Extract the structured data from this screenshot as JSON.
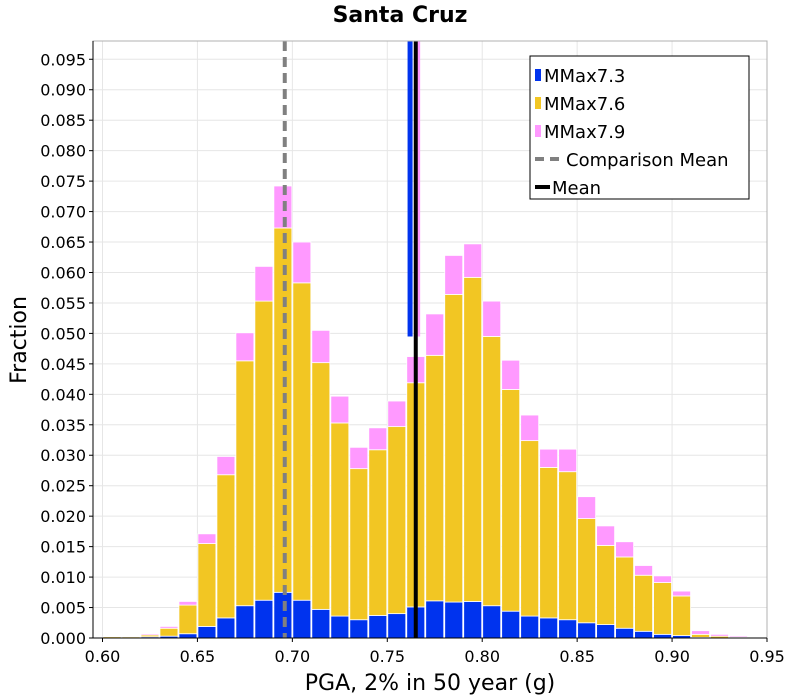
{
  "chart_data": {
    "type": "bar",
    "stacked": true,
    "title": "Santa Cruz",
    "xlabel": "PGA, 2% in 50 year (g)",
    "ylabel": "Fraction",
    "xlim": [
      0.595,
      0.95
    ],
    "ylim": [
      0.0,
      0.098
    ],
    "grid": true,
    "legend_position": "top-right",
    "x_ticks": [
      "0.60",
      "0.65",
      "0.70",
      "0.75",
      "0.80",
      "0.85",
      "0.90",
      "0.95"
    ],
    "y_ticks": [
      "0.000",
      "0.005",
      "0.010",
      "0.015",
      "0.020",
      "0.025",
      "0.030",
      "0.035",
      "0.040",
      "0.045",
      "0.050",
      "0.055",
      "0.060",
      "0.065",
      "0.070",
      "0.075",
      "0.080",
      "0.085",
      "0.090",
      "0.095"
    ],
    "bin_width": 0.01,
    "x": [
      0.605,
      0.615,
      0.625,
      0.635,
      0.645,
      0.655,
      0.665,
      0.675,
      0.685,
      0.695,
      0.705,
      0.715,
      0.725,
      0.735,
      0.745,
      0.755,
      0.765,
      0.775,
      0.785,
      0.795,
      0.805,
      0.815,
      0.825,
      0.835,
      0.845,
      0.855,
      0.865,
      0.875,
      0.885,
      0.895,
      0.905,
      0.915,
      0.925,
      0.935
    ],
    "series": [
      {
        "name": "MMax7.3",
        "color": "#0033ee",
        "values": [
          0.0,
          0.0,
          0.0002,
          0.0003,
          0.0007,
          0.0019,
          0.0033,
          0.0053,
          0.0062,
          0.0075,
          0.0062,
          0.0047,
          0.0036,
          0.003,
          0.0037,
          0.004,
          0.0051,
          0.0061,
          0.0059,
          0.006,
          0.0053,
          0.0044,
          0.0036,
          0.0033,
          0.003,
          0.0025,
          0.0022,
          0.0016,
          0.0011,
          0.0006,
          0.0004,
          0.0001,
          0.0,
          0.0
        ]
      },
      {
        "name": "MMax7.6",
        "color": "#f2c623",
        "values": [
          0.0002,
          0.0002,
          0.0003,
          0.0013,
          0.0047,
          0.0136,
          0.0235,
          0.0402,
          0.0491,
          0.0598,
          0.0521,
          0.0405,
          0.0317,
          0.0248,
          0.0272,
          0.0307,
          0.0368,
          0.0403,
          0.0505,
          0.0532,
          0.0442,
          0.0364,
          0.0288,
          0.0247,
          0.0243,
          0.0171,
          0.013,
          0.0117,
          0.0092,
          0.0085,
          0.0065,
          0.0005,
          0.0003,
          0.0001
        ]
      },
      {
        "name": "MMax7.9",
        "color": "#ff99ff",
        "values": [
          0.0,
          0.0001,
          0.0002,
          0.0003,
          0.0006,
          0.0016,
          0.003,
          0.0046,
          0.0057,
          0.0069,
          0.0067,
          0.0053,
          0.0044,
          0.0035,
          0.0036,
          0.0042,
          0.0043,
          0.0068,
          0.0064,
          0.0055,
          0.0058,
          0.0048,
          0.0042,
          0.003,
          0.0037,
          0.0036,
          0.0032,
          0.0025,
          0.0016,
          0.0011,
          0.0008,
          0.0006,
          0.0003,
          0.0002
        ]
      }
    ],
    "lines": [
      {
        "name": "Comparison Mean",
        "x": 0.696,
        "style": "dashed",
        "color": "#808080"
      },
      {
        "name": "Mean",
        "x": 0.765,
        "style": "solid",
        "color": "#000000"
      }
    ],
    "overlay_lines": [
      {
        "x": 0.762,
        "color": "#0033ee",
        "y_from": 0.0495
      },
      {
        "x": 0.766,
        "color": "#ff99ff",
        "y_from": 0.0495
      }
    ]
  }
}
